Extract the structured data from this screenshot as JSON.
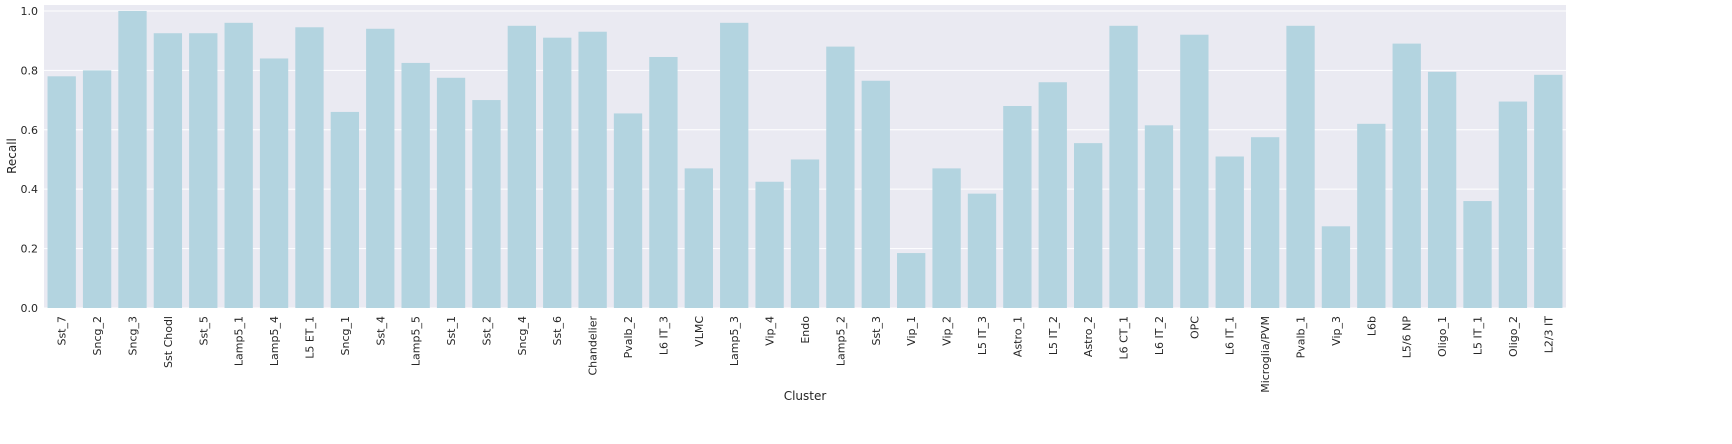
{
  "chart_data": {
    "type": "bar",
    "xlabel": "Cluster",
    "ylabel": "Recall",
    "ylim": [
      0,
      1.02
    ],
    "yticks": [
      "0.0",
      "0.2",
      "0.4",
      "0.6",
      "0.8",
      "1.0"
    ],
    "grid": true,
    "bar_color": "#b3d4e0",
    "background_color": "#eaeaf2",
    "categories": [
      "Sst_7",
      "Sncg_2",
      "Sncg_3",
      "Sst Chodl",
      "Sst_5",
      "Lamp5_1",
      "Lamp5_4",
      "L5 ET_1",
      "Sncg_1",
      "Sst_4",
      "Lamp5_5",
      "Sst_1",
      "Sst_2",
      "Sncg_4",
      "Sst_6",
      "Chandelier",
      "Pvalb_2",
      "L6 IT_3",
      "VLMC",
      "Lamp5_3",
      "Vip_4",
      "Endo",
      "Lamp5_2",
      "Sst_3",
      "Vip_1",
      "Vip_2",
      "L5 IT_3",
      "Astro_1",
      "L5 IT_2",
      "Astro_2",
      "L6 CT_1",
      "L6 IT_2",
      "OPC",
      "L6 IT_1",
      "Microglia/PVM",
      "Pvalb_1",
      "Vip_3",
      "L6b",
      "L5/6 NP",
      "Oligo_1",
      "L5 IT_1",
      "Oligo_2",
      "L2/3 IT"
    ],
    "values": [
      0.78,
      0.8,
      1.0,
      0.925,
      0.925,
      0.96,
      0.84,
      0.945,
      0.66,
      0.94,
      0.825,
      0.775,
      0.7,
      0.95,
      0.91,
      0.93,
      0.655,
      0.845,
      0.47,
      0.96,
      0.425,
      0.5,
      0.88,
      0.765,
      0.185,
      0.47,
      0.385,
      0.68,
      0.76,
      0.555,
      0.95,
      0.615,
      0.92,
      0.51,
      0.575,
      0.95,
      0.275,
      0.62,
      0.89,
      0.795,
      0.36,
      0.695,
      0.785
    ]
  }
}
